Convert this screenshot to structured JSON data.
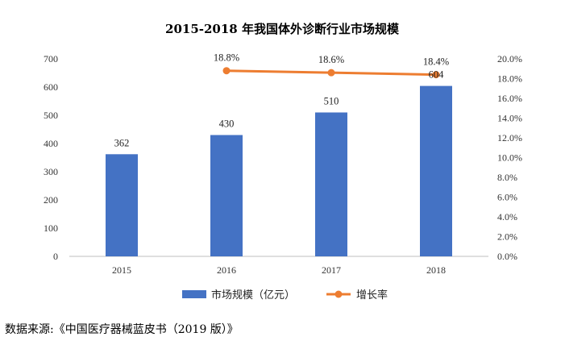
{
  "chart_data": {
    "type": "bar",
    "title": "2015-2018 年我国体外诊断行业市场规模",
    "categories": [
      "2015",
      "2016",
      "2017",
      "2018"
    ],
    "series": [
      {
        "name": "市场规模（亿元）",
        "type": "bar",
        "axis": "left",
        "values": [
          362,
          430,
          510,
          604
        ],
        "labels": [
          "362",
          "430",
          "510",
          "604"
        ]
      },
      {
        "name": "增长率",
        "type": "line",
        "axis": "right",
        "values": [
          null,
          18.8,
          18.6,
          18.4
        ],
        "labels": [
          "",
          "18.8%",
          "18.6%",
          "18.4%"
        ]
      }
    ],
    "ylim": [
      0,
      700
    ],
    "yticks": [
      0,
      100,
      200,
      300,
      400,
      500,
      600,
      700
    ],
    "ytick_labels": [
      "0",
      "100",
      "200",
      "300",
      "400",
      "500",
      "600",
      "700"
    ],
    "y2lim": [
      0,
      20
    ],
    "y2ticks": [
      0,
      2,
      4,
      6,
      8,
      10,
      12,
      14,
      16,
      18,
      20
    ],
    "y2tick_labels": [
      "0.0%",
      "2.0%",
      "4.0%",
      "6.0%",
      "8.0%",
      "10.0%",
      "12.0%",
      "14.0%",
      "16.0%",
      "18.0%",
      "20.0%"
    ],
    "legend_position": "bottom",
    "grid": false,
    "colors": {
      "bar": "#4472C4",
      "line": "#ED7D31",
      "axis": "#BFBFBF"
    }
  },
  "source_text": "数据来源:《中国医疗器械蓝皮书（2019 版）》"
}
